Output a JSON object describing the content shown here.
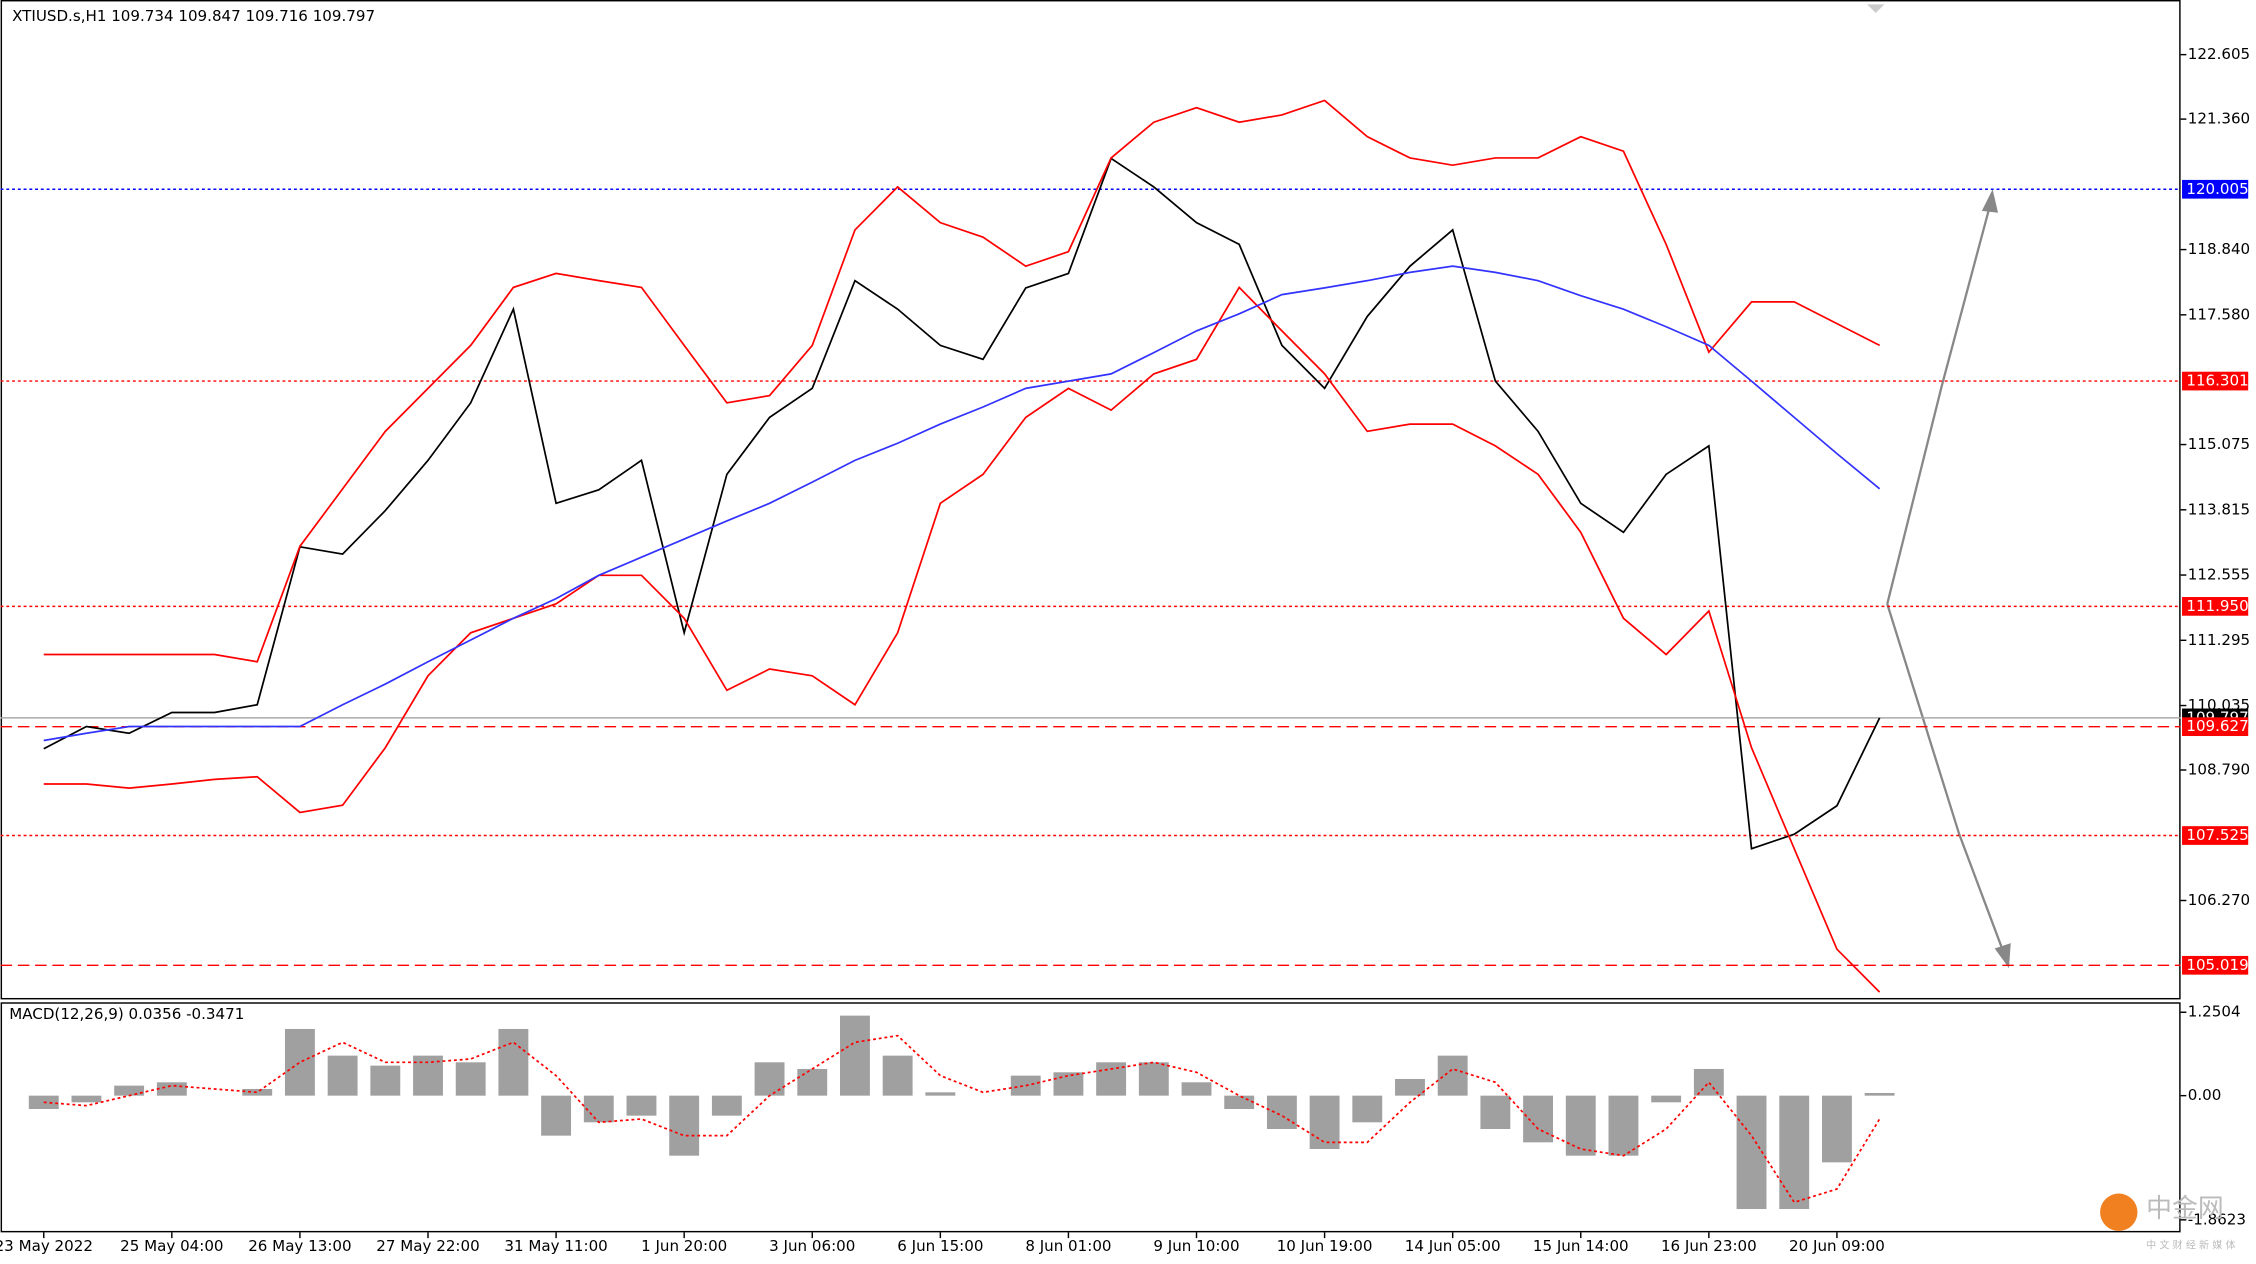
{
  "header": {
    "symbol": "XTIUSD.s,H1",
    "ohlc": [
      109.734,
      109.847,
      109.716,
      109.797
    ]
  },
  "watermark": {
    "name": "中金网",
    "tagline": "中 文 财 经 新 媒 体"
  },
  "chart_data": [
    {
      "type": "line",
      "categories": [
        "23 May 2022",
        null,
        null,
        "25 May 04:00",
        null,
        null,
        "26 May 13:00",
        null,
        null,
        "27 May 22:00",
        null,
        null,
        "31 May 11:00",
        null,
        null,
        "1 Jun 20:00",
        null,
        null,
        "3 Jun 06:00",
        null,
        null,
        "6 Jun 15:00",
        null,
        null,
        "8 Jun 01:00",
        null,
        null,
        "9 Jun 10:00",
        null,
        null,
        "10 Jun 19:00",
        null,
        null,
        "14 Jun 05:00",
        null,
        null,
        "15 Jun 14:00",
        null,
        null,
        "16 Jun 23:00",
        null,
        null,
        "20 Jun 09:00",
        null
      ],
      "series": [
        {
          "color": "#000000",
          "values": [
            109.2,
            109.63,
            109.5,
            109.9,
            109.9,
            110.05,
            113.1,
            112.96,
            113.8,
            114.77,
            115.88,
            117.69,
            113.94,
            114.2,
            114.77,
            111.44,
            114.5,
            115.6,
            116.16,
            118.24,
            117.69,
            116.99,
            116.72,
            118.1,
            118.38,
            120.6,
            120.05,
            119.36,
            118.94,
            116.99,
            116.16,
            117.55,
            118.52,
            119.22,
            116.3,
            115.33,
            113.94,
            113.38,
            114.5,
            115.05,
            107.27,
            107.55,
            108.1,
            109.797
          ]
        },
        {
          "color": "#ff0000",
          "values": [
            111.02,
            111.02,
            111.02,
            111.02,
            111.02,
            110.88,
            113.11,
            114.22,
            115.33,
            116.16,
            116.99,
            118.11,
            118.38,
            118.24,
            118.11,
            116.99,
            115.88,
            116.02,
            116.99,
            119.22,
            120.05,
            119.36,
            119.08,
            118.52,
            118.8,
            120.61,
            121.3,
            121.58,
            121.3,
            121.44,
            121.72,
            121.02,
            120.61,
            120.47,
            120.61,
            120.61,
            121.02,
            120.74,
            118.94,
            116.86,
            117.83,
            117.83,
            117.41,
            116.99
          ]
        },
        {
          "color": "#ff0000",
          "values": [
            108.52,
            108.52,
            108.44,
            108.52,
            108.61,
            108.66,
            107.97,
            108.11,
            109.22,
            110.61,
            111.44,
            111.72,
            112.0,
            112.55,
            112.55,
            111.72,
            110.33,
            110.74,
            110.61,
            110.05,
            111.44,
            113.94,
            114.5,
            115.6,
            116.16,
            115.74,
            116.44,
            116.72,
            118.11,
            117.27,
            116.44,
            115.33,
            115.47,
            115.47,
            115.05,
            114.5,
            113.38,
            111.72,
            111.02,
            111.86,
            109.22,
            107.27,
            105.33,
            104.5
          ]
        },
        {
          "color": "#3333ff",
          "values": [
            109.36,
            109.5,
            109.63,
            109.63,
            109.63,
            109.63,
            109.63,
            110.05,
            110.45,
            110.88,
            111.3,
            111.72,
            112.1,
            112.55,
            112.9,
            113.25,
            113.6,
            113.94,
            114.35,
            114.77,
            115.1,
            115.47,
            115.8,
            116.16,
            116.3,
            116.44,
            116.85,
            117.27,
            117.6,
            117.97,
            118.1,
            118.24,
            118.4,
            118.52,
            118.4,
            118.24,
            117.95,
            117.69,
            117.35,
            116.99,
            116.3,
            115.6,
            114.9,
            114.22
          ]
        }
      ],
      "ylim": [
        104.36,
        123.66
      ],
      "yticks": [
        122.605,
        {
          "value": 121.36,
          "label": "121.360"
        },
        {
          "value": 118.84,
          "label": "118.840"
        },
        {
          "value": 117.58,
          "label": "117.580"
        },
        115.075,
        113.815,
        112.555,
        111.295,
        110.035,
        {
          "value": 108.79,
          "label": "108.790"
        },
        {
          "value": 106.27,
          "label": "106.270"
        }
      ],
      "levels": [
        120.005,
        116.301,
        {
          "value": 111.95,
          "label": "111.950"
        },
        109.797,
        109.627,
        107.525,
        105.019
      ],
      "level_colors": [
        "#0000ff",
        "#ff0000",
        "#ff0000",
        "#000000",
        "#ff0000",
        "#ff0000",
        "#ff0000"
      ],
      "level_styles": [
        "dotted",
        "dotted",
        "dotted",
        "solid",
        "dashed",
        "dotted",
        "dashed"
      ]
    },
    {
      "type": "bar",
      "title": "MACD(12,26,9)",
      "readout": [
        0.0356,
        -0.3471
      ],
      "series": [
        {
          "color": "#a0a0a0",
          "values": [
            -0.2,
            -0.1,
            0.15,
            0.2,
            0.0,
            0.1,
            1.0,
            0.6,
            0.45,
            0.6,
            0.5,
            1.0,
            -0.6,
            -0.4,
            -0.3,
            -0.9,
            -0.3,
            0.5,
            0.4,
            1.2,
            0.6,
            0.05,
            0.0,
            0.3,
            0.35,
            0.5,
            0.5,
            0.2,
            -0.2,
            -0.5,
            -0.8,
            -0.4,
            0.25,
            0.6,
            -0.5,
            -0.7,
            -0.9,
            -0.9,
            -0.1,
            0.4,
            -1.7,
            -1.7,
            -1.0,
            0.04
          ]
        },
        {
          "type": "line",
          "color": "#ff0000",
          "values": [
            -0.1,
            -0.15,
            0.0,
            0.15,
            0.1,
            0.05,
            0.5,
            0.8,
            0.5,
            0.5,
            0.55,
            0.8,
            0.3,
            -0.4,
            -0.35,
            -0.6,
            -0.6,
            0.0,
            0.4,
            0.8,
            0.9,
            0.3,
            0.05,
            0.15,
            0.3,
            0.4,
            0.5,
            0.35,
            0.0,
            -0.3,
            -0.7,
            -0.7,
            -0.1,
            0.4,
            0.2,
            -0.5,
            -0.8,
            -0.9,
            -0.5,
            0.2,
            -0.6,
            -1.6,
            -1.4,
            -0.35
          ]
        }
      ],
      "ylim": [
        -2.05,
        1.4
      ],
      "yticks": [
        1.2504,
        {
          "value": 0,
          "label": "0.00"
        },
        -1.8623
      ]
    }
  ]
}
